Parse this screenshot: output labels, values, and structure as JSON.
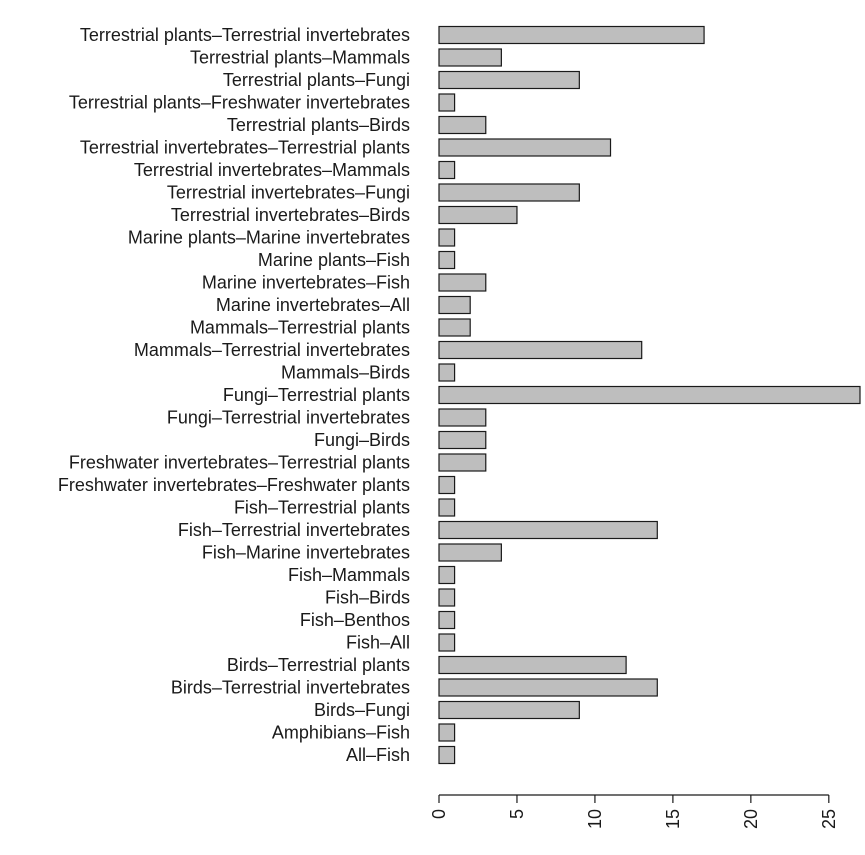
{
  "chart_data": {
    "type": "bar",
    "orientation": "horizontal",
    "categories": [
      "Terrestrial plants–Terrestrial invertebrates",
      "Terrestrial plants–Mammals",
      "Terrestrial plants–Fungi",
      "Terrestrial plants–Freshwater invertebrates",
      "Terrestrial plants–Birds",
      "Terrestrial invertebrates–Terrestrial plants",
      "Terrestrial invertebrates–Mammals",
      "Terrestrial invertebrates–Fungi",
      "Terrestrial invertebrates–Birds",
      "Marine plants–Marine invertebrates",
      "Marine plants–Fish",
      "Marine invertebrates–Fish",
      "Marine invertebrates–All",
      "Mammals–Terrestrial plants",
      "Mammals–Terrestrial invertebrates",
      "Mammals–Birds",
      "Fungi–Terrestrial plants",
      "Fungi–Terrestrial invertebrates",
      "Fungi–Birds",
      "Freshwater invertebrates–Terrestrial plants",
      "Freshwater invertebrates–Freshwater plants",
      "Fish–Terrestrial plants",
      "Fish–Terrestrial invertebrates",
      "Fish–Marine invertebrates",
      "Fish–Mammals",
      "Fish–Birds",
      "Fish–Benthos",
      "Fish–All",
      "Birds–Terrestrial plants",
      "Birds–Terrestrial invertebrates",
      "Birds–Fungi",
      "Amphibians–Fish",
      "All–Fish"
    ],
    "values": [
      17,
      4,
      9,
      1,
      3,
      11,
      1,
      9,
      5,
      1,
      1,
      3,
      2,
      2,
      13,
      1,
      27,
      3,
      3,
      3,
      1,
      1,
      14,
      4,
      1,
      1,
      1,
      1,
      12,
      14,
      9,
      1,
      1
    ],
    "xlim": [
      0,
      27
    ],
    "ticks": [
      0,
      5,
      10,
      15,
      20,
      25
    ],
    "title": "",
    "xlabel": "",
    "ylabel": "",
    "grid": false,
    "bar_color": "#bebebe",
    "border_color": "#1a1a1a"
  }
}
